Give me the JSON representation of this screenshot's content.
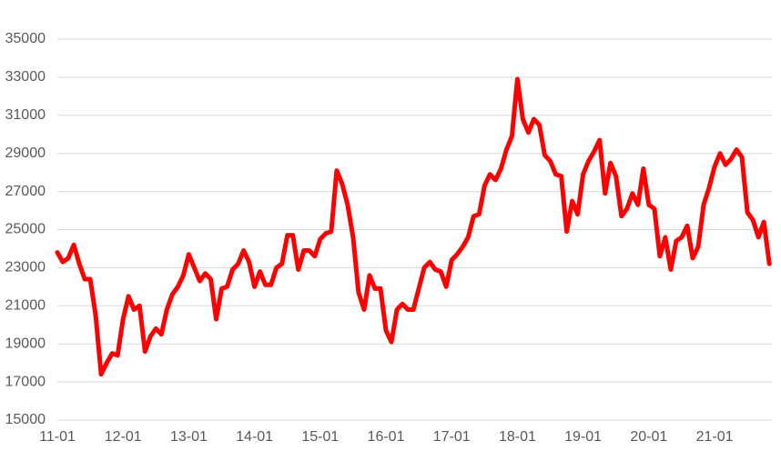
{
  "chart_data": {
    "type": "line",
    "x": [
      "11-01",
      "11-02",
      "11-03",
      "11-04",
      "11-05",
      "11-06",
      "11-07",
      "11-08",
      "11-09",
      "11-10",
      "11-11",
      "11-12",
      "12-01",
      "12-02",
      "12-03",
      "12-04",
      "12-05",
      "12-06",
      "12-07",
      "12-08",
      "12-09",
      "12-10",
      "12-11",
      "12-12",
      "13-01",
      "13-02",
      "13-03",
      "13-04",
      "13-05",
      "13-06",
      "13-07",
      "13-08",
      "13-09",
      "13-10",
      "13-11",
      "13-12",
      "14-01",
      "14-02",
      "14-03",
      "14-04",
      "14-05",
      "14-06",
      "14-07",
      "14-08",
      "14-09",
      "14-10",
      "14-11",
      "14-12",
      "15-01",
      "15-02",
      "15-03",
      "15-04",
      "15-05",
      "15-06",
      "15-07",
      "15-08",
      "15-09",
      "15-10",
      "15-11",
      "15-12",
      "16-01",
      "16-02",
      "16-03",
      "16-04",
      "16-05",
      "16-06",
      "16-07",
      "16-08",
      "16-09",
      "16-10",
      "16-11",
      "16-12",
      "17-01",
      "17-02",
      "17-03",
      "17-04",
      "17-05",
      "17-06",
      "17-07",
      "17-08",
      "17-09",
      "17-10",
      "17-11",
      "17-12",
      "18-01",
      "18-02",
      "18-03",
      "18-04",
      "18-05",
      "18-06",
      "18-07",
      "18-08",
      "18-09",
      "18-10",
      "18-11",
      "18-12",
      "19-01",
      "19-02",
      "19-03",
      "19-04",
      "19-05",
      "19-06",
      "19-07",
      "19-08",
      "19-09",
      "19-10",
      "19-11",
      "19-12",
      "20-01",
      "20-02",
      "20-03",
      "20-04",
      "20-05",
      "20-06",
      "20-07",
      "20-08",
      "20-09",
      "20-10",
      "20-11",
      "20-12",
      "21-01",
      "21-02",
      "21-03",
      "21-04",
      "21-05",
      "21-06",
      "21-07",
      "21-08",
      "21-09",
      "21-10",
      "21-11"
    ],
    "values": [
      23800,
      23300,
      23500,
      24200,
      23200,
      22400,
      22400,
      20500,
      17400,
      18000,
      18500,
      18400,
      20300,
      21500,
      20800,
      21000,
      18600,
      19400,
      19800,
      19500,
      20800,
      21600,
      22000,
      22600,
      23700,
      23000,
      22300,
      22700,
      22400,
      20300,
      21900,
      22000,
      22900,
      23200,
      23900,
      23300,
      22000,
      22800,
      22100,
      22100,
      23000,
      23200,
      24700,
      24700,
      22900,
      23900,
      23900,
      23600,
      24500,
      24800,
      24900,
      28100,
      27400,
      26300,
      24600,
      21700,
      20800,
      22600,
      21900,
      21900,
      19700,
      19100,
      20800,
      21100,
      20800,
      20800,
      21900,
      23000,
      23300,
      22900,
      22800,
      22000,
      23400,
      23700,
      24100,
      24600,
      25700,
      25800,
      27300,
      27900,
      27600,
      28200,
      29200,
      29900,
      32900,
      30800,
      30100,
      30800,
      30500,
      28900,
      28600,
      27900,
      27800,
      24900,
      26500,
      25800,
      27900,
      28600,
      29100,
      29700,
      26900,
      28500,
      27800,
      25700,
      26100,
      26900,
      26300,
      28200,
      26300,
      26100,
      23600,
      24600,
      22900,
      24400,
      24600,
      25200,
      23500,
      24100,
      26300,
      27200,
      28300,
      29000,
      28400,
      28700,
      29200,
      28800,
      25900,
      25500,
      24600,
      25400,
      23200
    ],
    "color": "#ff0000",
    "xticks": [
      "11-01",
      "12-01",
      "13-01",
      "14-01",
      "15-01",
      "16-01",
      "17-01",
      "18-01",
      "19-01",
      "20-01",
      "21-01"
    ],
    "ylim": [
      15000,
      35000
    ],
    "yticks": [
      15000,
      17000,
      19000,
      21000,
      23000,
      25000,
      27000,
      29000,
      31000,
      33000,
      35000
    ],
    "grid": true
  }
}
